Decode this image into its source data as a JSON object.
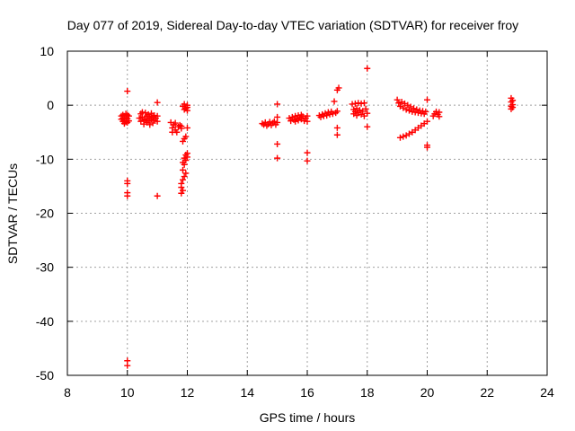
{
  "chart_data": {
    "type": "scatter",
    "title": "Day 077 of 2019, Sidereal Day-to-day VTEC variation (SDTVAR) for receiver froy",
    "xlabel": "GPS time / hours",
    "ylabel": "SDTVAR / TECUs",
    "xlim": [
      8,
      24
    ],
    "ylim": [
      -50,
      10
    ],
    "xticks": [
      8,
      10,
      12,
      14,
      16,
      18,
      20,
      22,
      24
    ],
    "yticks": [
      10,
      0,
      -10,
      -20,
      -30,
      -40,
      -50
    ],
    "grid": true,
    "marker": "+",
    "color": "#ff0000",
    "series": [
      {
        "name": "SDTVAR",
        "points": [
          [
            9.8,
            -2.0
          ],
          [
            9.8,
            -2.6
          ],
          [
            9.85,
            -1.8
          ],
          [
            9.85,
            -2.4
          ],
          [
            9.85,
            -3.0
          ],
          [
            9.9,
            -2.0
          ],
          [
            9.9,
            -2.8
          ],
          [
            9.9,
            -3.4
          ],
          [
            9.95,
            -1.6
          ],
          [
            9.95,
            -2.3
          ],
          [
            9.95,
            -3.1
          ],
          [
            10.0,
            -1.8
          ],
          [
            10.0,
            -2.5
          ],
          [
            10.0,
            -3.2
          ],
          [
            10.05,
            -2.0
          ],
          [
            10.05,
            -2.9
          ],
          [
            10.0,
            2.6
          ],
          [
            10.0,
            -14.0
          ],
          [
            10.0,
            -14.5
          ],
          [
            10.0,
            -16.2
          ],
          [
            10.0,
            -16.8
          ],
          [
            10.0,
            -47.3
          ],
          [
            10.0,
            -48.2
          ],
          [
            10.4,
            -2.4
          ],
          [
            10.45,
            -1.6
          ],
          [
            10.45,
            -3.0
          ],
          [
            10.5,
            -1.3
          ],
          [
            10.5,
            -2.2
          ],
          [
            10.55,
            -2.8
          ],
          [
            10.55,
            -3.5
          ],
          [
            10.6,
            -1.4
          ],
          [
            10.6,
            -2.6
          ],
          [
            10.65,
            -2.0
          ],
          [
            10.65,
            -3.2
          ],
          [
            10.7,
            -1.7
          ],
          [
            10.7,
            -2.9
          ],
          [
            10.75,
            -2.3
          ],
          [
            10.75,
            -3.6
          ],
          [
            10.8,
            -1.5
          ],
          [
            10.8,
            -2.6
          ],
          [
            10.85,
            -2.1
          ],
          [
            10.85,
            -3.3
          ],
          [
            10.9,
            -1.9
          ],
          [
            10.9,
            -2.8
          ],
          [
            10.95,
            -2.4
          ],
          [
            11.0,
            -2.0
          ],
          [
            11.0,
            -3.0
          ],
          [
            11.0,
            0.5
          ],
          [
            11.0,
            -16.8
          ],
          [
            11.45,
            -3.2
          ],
          [
            11.5,
            -4.2
          ],
          [
            11.5,
            -5.0
          ],
          [
            11.55,
            -3.6
          ],
          [
            11.6,
            -4.6
          ],
          [
            11.6,
            -3.3
          ],
          [
            11.65,
            -5.0
          ],
          [
            11.7,
            -4.0
          ],
          [
            11.75,
            -3.7
          ],
          [
            11.8,
            -4.3
          ],
          [
            11.8,
            -3.9
          ],
          [
            11.85,
            -6.7
          ],
          [
            11.9,
            -6.2
          ],
          [
            11.95,
            -5.8
          ],
          [
            11.85,
            -0.2
          ],
          [
            11.9,
            -0.8
          ],
          [
            11.9,
            0.2
          ],
          [
            11.95,
            -0.6
          ],
          [
            12.0,
            -1.0
          ],
          [
            12.0,
            -0.4
          ],
          [
            12.0,
            0.0
          ],
          [
            12.0,
            -4.2
          ],
          [
            11.85,
            -10.6
          ],
          [
            11.9,
            -9.8
          ],
          [
            11.95,
            -9.2
          ],
          [
            12.0,
            -8.9
          ],
          [
            11.9,
            -11.0
          ],
          [
            11.95,
            -10.2
          ],
          [
            12.0,
            -9.6
          ],
          [
            11.85,
            -12.0
          ],
          [
            11.8,
            -14.5
          ],
          [
            11.85,
            -13.8
          ],
          [
            11.9,
            -13.2
          ],
          [
            11.95,
            -12.6
          ],
          [
            11.8,
            -15.2
          ],
          [
            11.85,
            -15.8
          ],
          [
            11.8,
            -16.3
          ],
          [
            14.5,
            -3.4
          ],
          [
            14.55,
            -3.6
          ],
          [
            14.6,
            -3.2
          ],
          [
            14.65,
            -3.8
          ],
          [
            14.7,
            -3.5
          ],
          [
            14.75,
            -3.1
          ],
          [
            14.8,
            -3.7
          ],
          [
            14.85,
            -3.3
          ],
          [
            14.9,
            -3.0
          ],
          [
            14.95,
            -3.6
          ],
          [
            15.0,
            -3.2
          ],
          [
            15.0,
            -2.2
          ],
          [
            15.0,
            0.2
          ],
          [
            15.0,
            -7.2
          ],
          [
            15.0,
            -9.8
          ],
          [
            15.4,
            -2.4
          ],
          [
            15.45,
            -2.9
          ],
          [
            15.5,
            -2.2
          ],
          [
            15.55,
            -2.7
          ],
          [
            15.6,
            -2.0
          ],
          [
            15.6,
            -3.0
          ],
          [
            15.65,
            -2.5
          ],
          [
            15.7,
            -1.9
          ],
          [
            15.7,
            -2.8
          ],
          [
            15.75,
            -2.3
          ],
          [
            15.8,
            -1.8
          ],
          [
            15.8,
            -2.6
          ],
          [
            15.85,
            -2.1
          ],
          [
            15.9,
            -2.9
          ],
          [
            15.95,
            -2.4
          ],
          [
            16.0,
            -2.0
          ],
          [
            16.0,
            -3.0
          ],
          [
            16.0,
            -8.8
          ],
          [
            16.0,
            -10.3
          ],
          [
            16.4,
            -1.9
          ],
          [
            16.45,
            -2.2
          ],
          [
            16.5,
            -1.7
          ],
          [
            16.55,
            -2.0
          ],
          [
            16.6,
            -1.5
          ],
          [
            16.65,
            -1.9
          ],
          [
            16.7,
            -1.3
          ],
          [
            16.75,
            -1.7
          ],
          [
            16.8,
            -1.2
          ],
          [
            16.85,
            -1.6
          ],
          [
            16.9,
            0.7
          ],
          [
            16.95,
            -1.4
          ],
          [
            17.0,
            -1.1
          ],
          [
            17.0,
            -4.2
          ],
          [
            17.0,
            -5.5
          ],
          [
            17.0,
            2.8
          ],
          [
            17.05,
            3.2
          ],
          [
            17.5,
            0.2
          ],
          [
            17.55,
            -0.8
          ],
          [
            17.55,
            -1.6
          ],
          [
            17.6,
            0.3
          ],
          [
            17.6,
            -1.2
          ],
          [
            17.65,
            -0.6
          ],
          [
            17.65,
            -1.9
          ],
          [
            17.7,
            0.4
          ],
          [
            17.7,
            -1.4
          ],
          [
            17.75,
            -0.9
          ],
          [
            17.8,
            0.3
          ],
          [
            17.8,
            -1.7
          ],
          [
            17.85,
            -1.1
          ],
          [
            17.9,
            0.4
          ],
          [
            17.9,
            -2.0
          ],
          [
            17.95,
            -0.7
          ],
          [
            18.0,
            -1.5
          ],
          [
            18.0,
            6.8
          ],
          [
            18.0,
            -4.0
          ],
          [
            19.0,
            1.0
          ],
          [
            19.05,
            0.4
          ],
          [
            19.1,
            -0.2
          ],
          [
            19.15,
            0.6
          ],
          [
            19.2,
            -0.5
          ],
          [
            19.25,
            0.3
          ],
          [
            19.3,
            -0.8
          ],
          [
            19.35,
            0.0
          ],
          [
            19.4,
            -1.0
          ],
          [
            19.45,
            -0.3
          ],
          [
            19.5,
            -1.2
          ],
          [
            19.55,
            -0.6
          ],
          [
            19.6,
            -1.3
          ],
          [
            19.65,
            -0.8
          ],
          [
            19.7,
            -1.4
          ],
          [
            19.75,
            -1.0
          ],
          [
            19.8,
            -1.5
          ],
          [
            19.85,
            -1.1
          ],
          [
            19.9,
            -1.6
          ],
          [
            19.95,
            -1.2
          ],
          [
            19.1,
            -6.0
          ],
          [
            19.2,
            -5.8
          ],
          [
            19.3,
            -5.6
          ],
          [
            19.4,
            -5.3
          ],
          [
            19.5,
            -5.0
          ],
          [
            19.6,
            -4.6
          ],
          [
            19.7,
            -4.2
          ],
          [
            19.8,
            -3.8
          ],
          [
            19.9,
            -3.4
          ],
          [
            20.0,
            -3.0
          ],
          [
            20.0,
            -7.4
          ],
          [
            20.0,
            -7.8
          ],
          [
            20.0,
            1.0
          ],
          [
            20.2,
            -2.0
          ],
          [
            20.25,
            -1.6
          ],
          [
            20.3,
            -1.2
          ],
          [
            20.35,
            -1.7
          ],
          [
            20.4,
            -1.3
          ],
          [
            20.4,
            -2.1
          ],
          [
            22.8,
            1.3
          ],
          [
            22.8,
            0.6
          ],
          [
            22.8,
            -0.2
          ],
          [
            22.8,
            -0.7
          ],
          [
            22.85,
            0.9
          ],
          [
            22.85,
            0.1
          ],
          [
            22.85,
            -0.4
          ]
        ]
      }
    ]
  }
}
